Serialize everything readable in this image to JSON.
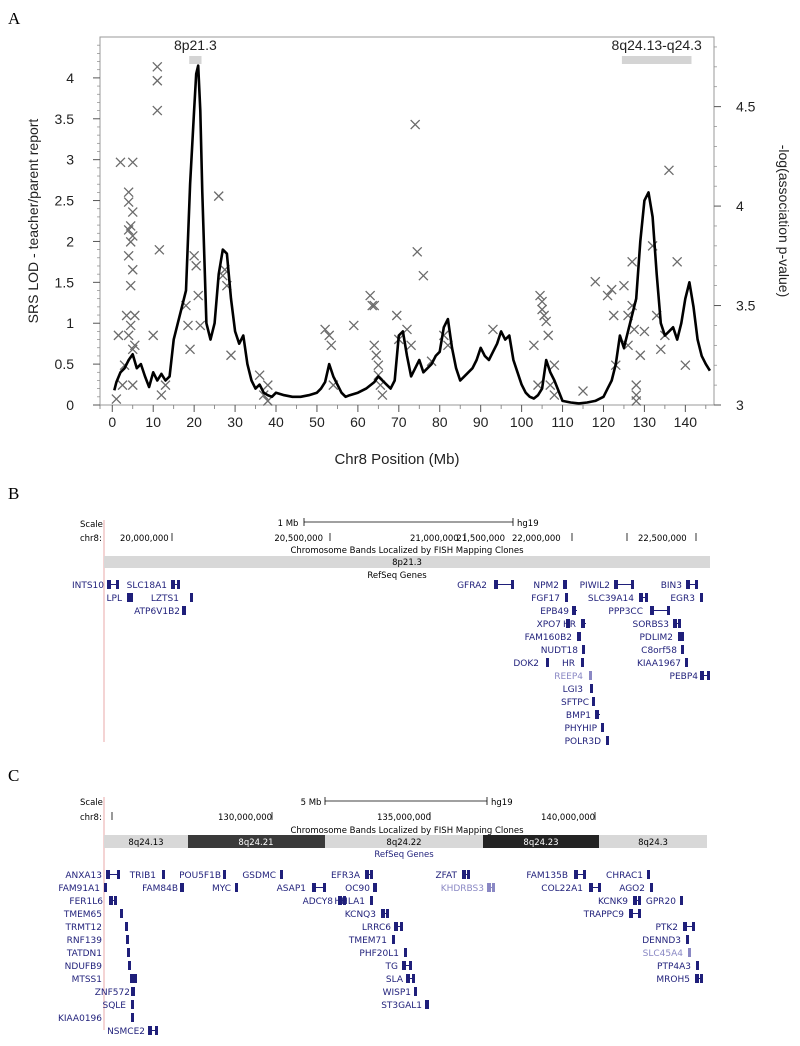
{
  "panels": {
    "a_letter": "A",
    "b_letter": "B",
    "c_letter": "C"
  },
  "colors": {
    "lod_line": "#000000",
    "cross": "#6b6b6b",
    "band_light": "#d4d4d4",
    "band_dark": "#3a3a3a",
    "gene": "#1f1f7a",
    "gene_faded": "#8a88c4",
    "baseline": "#e9a8a8"
  },
  "chart_data": {
    "type": "line",
    "xlabel": "Chr8 Position (Mb)",
    "ylabel": "SRS LOD - teacher/parent report",
    "y2label": "-log(association p-value)",
    "xlim": [
      -3,
      147
    ],
    "ylim": [
      0,
      4.5
    ],
    "y2lim": [
      3,
      4.85
    ],
    "x_ticks": [
      0,
      10,
      20,
      30,
      40,
      50,
      60,
      70,
      80,
      90,
      100,
      110,
      120,
      130,
      140
    ],
    "x_tick_labels": [
      "0",
      "10",
      "20",
      "30",
      "40",
      "50",
      "60",
      "70",
      "80",
      "90",
      "100",
      "110",
      "120",
      "130",
      "140"
    ],
    "y_ticks": [
      0,
      0.5,
      1,
      1.5,
      2,
      2.5,
      3,
      3.5,
      4
    ],
    "y_tick_labels": [
      "0",
      "0.5",
      "1",
      "1.5",
      "2",
      "2.5",
      "3",
      "3.5",
      "4"
    ],
    "y2_ticks": [
      3,
      3.5,
      4,
      4.5
    ],
    "y2_tick_labels": [
      "3",
      "3.5",
      "4",
      "4.5"
    ],
    "regions": [
      {
        "label": "8p21.3",
        "start": 18.8,
        "end": 21.8
      },
      {
        "label": "8q24.13-q24.3",
        "start": 124.5,
        "end": 141.5
      }
    ],
    "series": [
      {
        "role": "SRS LOD",
        "x": [
          0.5,
          1,
          2,
          3,
          4,
          5,
          6,
          7,
          8,
          9,
          10,
          11,
          12,
          13,
          14,
          15,
          16,
          17,
          18,
          19,
          20,
          20.5,
          21,
          21.5,
          22,
          23,
          24,
          25,
          26,
          27,
          28,
          29,
          30,
          31,
          32,
          33,
          34,
          35,
          36,
          37,
          38,
          39,
          40,
          42,
          44,
          46,
          48,
          50,
          51,
          52,
          53,
          54,
          55,
          56,
          57,
          58,
          60,
          62,
          64,
          65,
          66,
          67,
          68,
          69,
          70,
          71,
          72,
          73,
          74,
          75,
          76,
          77,
          78,
          79,
          80,
          81,
          82,
          83,
          84,
          85,
          86,
          87,
          88,
          89,
          90,
          91,
          92,
          93,
          94,
          95,
          96,
          97,
          98,
          99,
          100,
          101,
          102,
          103,
          104,
          105,
          106,
          107,
          108,
          110,
          112,
          114,
          116,
          118,
          120,
          121,
          122,
          123,
          124,
          125,
          126,
          127,
          128,
          129,
          130,
          131,
          132,
          133,
          134,
          135,
          136,
          137,
          138,
          139,
          140,
          141,
          142,
          143,
          144,
          145,
          146
        ],
        "y": [
          0.18,
          0.28,
          0.4,
          0.45,
          0.55,
          0.62,
          0.45,
          0.5,
          0.35,
          0.22,
          0.4,
          0.3,
          0.38,
          0.3,
          0.35,
          0.8,
          1.0,
          1.2,
          1.4,
          2.7,
          3.6,
          4.05,
          4.15,
          3.6,
          2.6,
          1.0,
          0.8,
          1.0,
          1.6,
          1.9,
          1.85,
          1.3,
          0.9,
          0.75,
          0.85,
          0.5,
          0.3,
          0.2,
          0.25,
          0.15,
          0.12,
          0.1,
          0.15,
          0.12,
          0.1,
          0.1,
          0.12,
          0.15,
          0.2,
          0.28,
          0.5,
          0.35,
          0.25,
          0.15,
          0.1,
          0.12,
          0.15,
          0.2,
          0.28,
          0.35,
          0.3,
          0.25,
          0.2,
          0.3,
          0.85,
          0.9,
          0.6,
          0.35,
          0.45,
          0.55,
          0.4,
          0.45,
          0.5,
          0.6,
          0.65,
          0.95,
          1.05,
          0.7,
          0.45,
          0.3,
          0.35,
          0.4,
          0.45,
          0.55,
          0.7,
          0.6,
          0.55,
          0.65,
          0.75,
          0.9,
          0.8,
          0.85,
          0.55,
          0.4,
          0.25,
          0.15,
          0.1,
          0.08,
          0.12,
          0.2,
          0.55,
          0.4,
          0.3,
          0.05,
          0.03,
          0.02,
          0.03,
          0.05,
          0.1,
          0.2,
          0.3,
          0.5,
          0.85,
          0.7,
          0.9,
          1.1,
          1.3,
          2.0,
          2.5,
          2.6,
          2.3,
          1.6,
          1.0,
          0.85,
          0.9,
          0.95,
          0.8,
          1.0,
          1.3,
          1.5,
          1.2,
          0.8,
          0.6,
          0.5,
          0.42
        ]
      },
      {
        "role": "association p-values",
        "x": [
          1,
          1.5,
          2,
          2.5,
          3,
          3.5,
          4,
          4,
          4,
          4,
          4,
          4.5,
          4.5,
          4.5,
          4.5,
          5,
          5,
          5,
          5,
          5,
          5,
          5.5,
          5.5,
          10,
          11,
          11,
          11,
          11.5,
          12,
          13,
          18,
          18.5,
          19,
          20,
          20.5,
          21,
          21.5,
          26,
          27,
          27.5,
          28,
          29,
          36,
          37,
          38,
          38,
          52,
          53,
          53.5,
          54,
          59,
          63,
          63.5,
          64,
          64,
          64.5,
          65,
          65,
          65.5,
          66,
          69.5,
          70,
          72,
          73,
          74,
          74.5,
          76,
          78,
          81,
          82,
          93,
          103,
          104,
          104.5,
          105,
          105,
          105.5,
          106,
          106.5,
          107,
          108,
          108,
          115,
          118,
          121,
          122,
          122.5,
          123,
          125,
          126,
          126,
          127,
          127,
          127.5,
          128,
          128,
          128,
          129,
          130,
          132,
          133,
          134,
          135,
          136,
          138,
          140
        ],
        "y": [
          3.03,
          3.35,
          4.22,
          3.1,
          3.2,
          3.45,
          4.07,
          4.02,
          3.88,
          3.75,
          3.35,
          3.9,
          3.82,
          3.6,
          3.4,
          4.22,
          3.97,
          3.85,
          3.68,
          3.28,
          3.1,
          3.45,
          3.3,
          3.35,
          4.7,
          4.63,
          4.48,
          3.78,
          3.05,
          3.1,
          3.5,
          3.4,
          3.28,
          3.75,
          3.7,
          3.55,
          3.4,
          4.05,
          3.65,
          3.68,
          3.6,
          3.25,
          3.15,
          3.05,
          3.02,
          3.1,
          3.38,
          3.35,
          3.3,
          3.1,
          3.4,
          3.55,
          3.5,
          3.5,
          3.3,
          3.25,
          3.2,
          3.15,
          3.1,
          3.05,
          3.45,
          3.33,
          3.38,
          3.3,
          4.41,
          3.77,
          3.65,
          3.22,
          3.35,
          3.3,
          3.38,
          3.3,
          3.1,
          3.55,
          3.52,
          3.48,
          3.45,
          3.42,
          3.35,
          3.1,
          3.05,
          3.2,
          3.07,
          3.62,
          3.55,
          3.58,
          3.45,
          3.2,
          3.6,
          3.45,
          3.3,
          3.72,
          3.5,
          3.38,
          3.1,
          3.05,
          3.02,
          3.25,
          3.37,
          3.8,
          3.45,
          3.28,
          3.35,
          4.18,
          3.72,
          3.2
        ]
      }
    ]
  },
  "browser_b": {
    "scale_label": "Scale",
    "chr_label": "chr8:",
    "scale_value": "1 Mb",
    "assembly": "hg19",
    "positions": [
      "20,000,000",
      "20,500,000",
      "21,000,000",
      "21,500,000",
      "22,000,000",
      "22,500,000"
    ],
    "bands_title": "Chromosome Bands Localized by FISH Mapping Clones",
    "band": "8p21.3",
    "refseq_title": "RefSeq Genes",
    "genes": [
      "INTS10",
      "LPL",
      "SLC18A1",
      "LZTS1",
      "ATP6V1B2",
      "GFRA2",
      "NPM2",
      "FGF17",
      "EPB49",
      "XPO7",
      "HR",
      "FAM160B2",
      "NUDT18",
      "DOK2",
      "HR",
      "REEP4",
      "LGI3",
      "SFTPC",
      "BMP1",
      "PHYHIP",
      "POLR3D",
      "PIWIL2",
      "SLC39A14",
      "PPP3CC",
      "SORBS3",
      "PDLIM2",
      "C8orf58",
      "KIAA1967",
      "BIN3",
      "EGR3",
      "PEBP4"
    ]
  },
  "browser_c": {
    "scale_label": "Scale",
    "chr_label": "chr8:",
    "scale_value": "5 Mb",
    "assembly": "hg19",
    "positions": [
      "130,000,000",
      "135,000,000",
      "140,000,000"
    ],
    "bands_title": "Chromosome Bands Localized by FISH Mapping Clones",
    "bands": [
      "8q24.13",
      "8q24.21",
      "8q24.22",
      "8q24.23",
      "8q24.3"
    ],
    "refseq_title": "RefSeq Genes",
    "genes": [
      "ANXA13",
      "FAM91A1",
      "FER1L6",
      "TMEM65",
      "TRMT12",
      "RNF139",
      "TATDN1",
      "NDUFB9",
      "MTSS1",
      "ZNF572",
      "SQLE",
      "KIAA0196",
      "NSMCE2",
      "TRIB1",
      "FAM84B",
      "POU5F1B",
      "MYC",
      "GSDMC",
      "ASAP1",
      "ADCY8",
      "EFR3A",
      "OC90",
      "HHLA1",
      "KCNQ3",
      "LRRC6",
      "TMEM71",
      "PHF20L1",
      "TG",
      "SLA",
      "WISP1",
      "ST3GAL1",
      "ZFAT",
      "KHDRBS3",
      "FAM135B",
      "COL22A1",
      "CHRAC1",
      "AGO2",
      "KCNK9",
      "TRAPPC9",
      "GPR20",
      "PTK2",
      "DENND3",
      "SLC45A4",
      "PTP4A3",
      "MROH5"
    ]
  }
}
